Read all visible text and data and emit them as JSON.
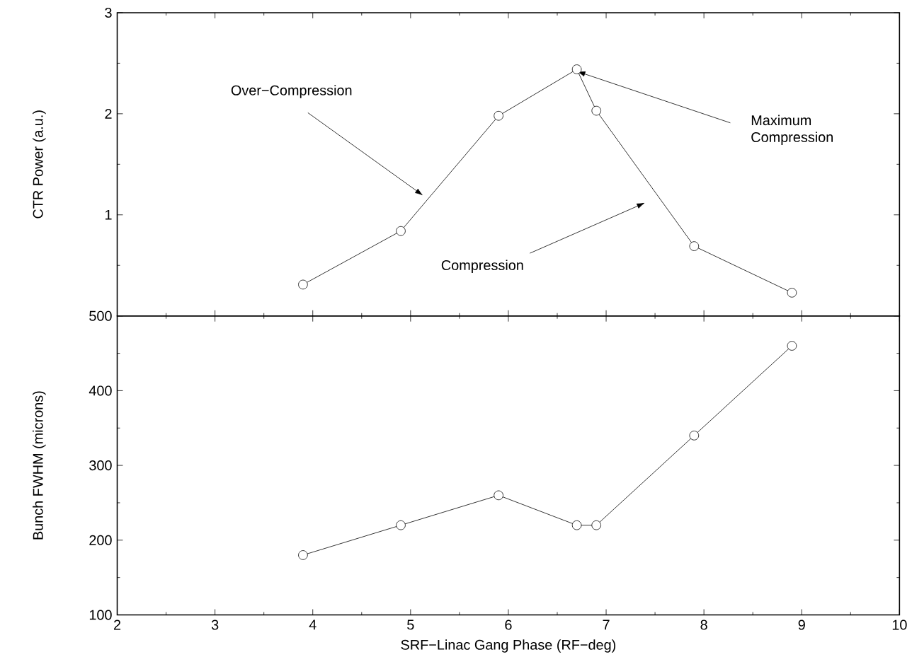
{
  "chart_data": [
    {
      "type": "line",
      "ylabel": "CTR Power (a.u.)",
      "x": [
        3.9,
        4.9,
        5.9,
        6.7,
        6.9,
        7.9,
        8.9
      ],
      "values": [
        0.31,
        0.84,
        1.98,
        2.44,
        2.03,
        0.69,
        0.23
      ],
      "color": "#000000",
      "marker": "circle",
      "line_style": "solid",
      "xlim": [
        2,
        10
      ],
      "ylim": [
        0,
        3
      ],
      "xticks": [
        2,
        3,
        4,
        5,
        6,
        7,
        8,
        9,
        10
      ],
      "yticks": [
        {
          "value": 0,
          "label": null
        },
        1,
        2,
        3
      ],
      "tick_labels": "y",
      "grid": false,
      "annotations": [
        "Over−Compression",
        "Maximum Compression",
        "Compression"
      ]
    },
    {
      "type": "line",
      "xlabel": "SRF−Linac Gang Phase (RF−deg)",
      "ylabel": "Bunch FWHM  (microns)",
      "x": [
        3.9,
        4.9,
        5.9,
        6.7,
        6.9,
        7.9,
        8.9
      ],
      "values": [
        180,
        220,
        260,
        220,
        220,
        340,
        460
      ],
      "color": "#000000",
      "marker": "circle",
      "line_style": "solid",
      "xlim": [
        2,
        10
      ],
      "ylim": [
        100,
        500
      ],
      "xticks": [
        2,
        3,
        4,
        5,
        6,
        7,
        8,
        9,
        10
      ],
      "yticks": [
        100,
        200,
        300,
        400,
        500
      ],
      "grid": false
    }
  ]
}
